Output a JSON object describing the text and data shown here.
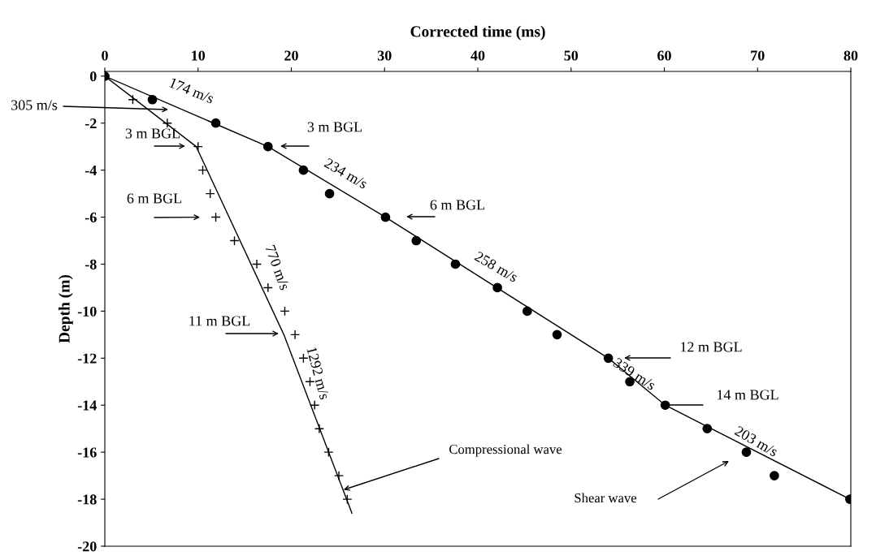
{
  "chart_data": {
    "type": "scatter",
    "xlabel": "Corrected time (ms)",
    "ylabel": "Depth (m)",
    "xlim": [
      0,
      80
    ],
    "xticks": [
      0,
      10,
      20,
      30,
      40,
      50,
      60,
      70,
      80
    ],
    "ylim": [
      -20,
      0.2
    ],
    "yticks": [
      0,
      -2,
      -4,
      -6,
      -8,
      -10,
      -12,
      -14,
      -16,
      -18,
      -20
    ],
    "series": [
      {
        "marker": "circle",
        "color": "#000000",
        "x": [
          0,
          5.1,
          11.9,
          17.5,
          21.3,
          24.1,
          30.1,
          33.4,
          37.6,
          42.1,
          45.3,
          48.5,
          54.0,
          56.3,
          60.1,
          64.6,
          68.8,
          71.8,
          79.9
        ],
        "values": [
          0,
          -1,
          -2,
          -3,
          -4,
          -5,
          -6,
          -7,
          -8,
          -9,
          -10,
          -11,
          -12,
          -13,
          -14,
          -15,
          -16,
          -17,
          -18
        ]
      },
      {
        "marker": "cross",
        "color": "#000000",
        "x": [
          0,
          3.0,
          6.7,
          10.0,
          10.5,
          11.3,
          11.9,
          13.9,
          16.3,
          17.5,
          19.3,
          20.4,
          21.3,
          22.0,
          22.5,
          23.0,
          24.0,
          25.1,
          26.0
        ],
        "values": [
          0,
          -1,
          -2,
          -3,
          -4,
          -5,
          -6,
          -7,
          -8,
          -9,
          -10,
          -11,
          -12,
          -13,
          -14,
          -15,
          -16,
          -17,
          -18
        ]
      },
      {
        "type": "line",
        "marker": "none",
        "color": "#000000",
        "x": [
          0,
          17.5,
          30.1,
          54.0,
          60.1,
          79.9
        ],
        "values": [
          0,
          -3,
          -6,
          -12,
          -14,
          -18
        ]
      },
      {
        "type": "line",
        "marker": "none",
        "color": "#000000",
        "x": [
          0,
          9.8,
          19.2,
          26.5
        ],
        "values": [
          0,
          -3,
          -11,
          -18.6
        ]
      }
    ],
    "annotations": [
      "174 m/s",
      "234 m/s",
      "258 m/s",
      "339 m/s",
      "203 m/s",
      "770 m/s",
      "1292 m/s",
      "305 m/s",
      "3 m BGL",
      {
        "text": "6 m BGL",
        "x": 11.9,
        "y": -6
      },
      "11 m BGL",
      "3 m BGL",
      "6 m BGL",
      "12 m BGL",
      "14 m BGL",
      {
        "text": "Compressional wave",
        "x": 25.6,
        "y": -17.6
      },
      "Shear wave"
    ]
  }
}
